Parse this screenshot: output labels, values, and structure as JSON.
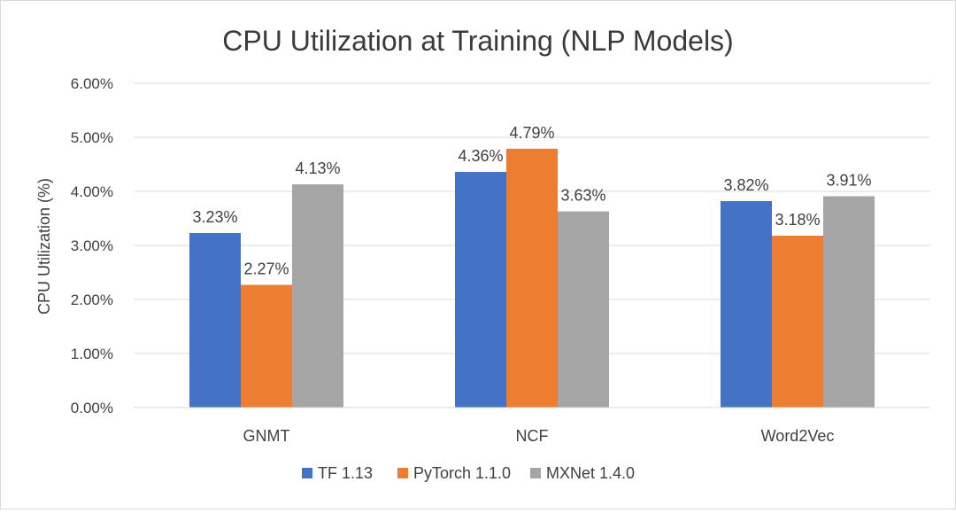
{
  "chart_data": {
    "type": "bar",
    "title": "CPU Utilization at Training (NLP Models)",
    "xlabel": "",
    "ylabel": "CPU Utilization (%)",
    "ylim": [
      0,
      6
    ],
    "yticks": [
      0,
      1,
      2,
      3,
      4,
      5,
      6
    ],
    "ytick_labels": [
      "0.00%",
      "1.00%",
      "2.00%",
      "3.00%",
      "4.00%",
      "5.00%",
      "6.00%"
    ],
    "grid": true,
    "legend_position": "bottom",
    "categories": [
      "GNMT",
      "NCF",
      "Word2Vec"
    ],
    "series": [
      {
        "name": "TF 1.13",
        "color": "#4472c4",
        "values": [
          3.23,
          4.36,
          3.82
        ],
        "labels": [
          "3.23%",
          "4.36%",
          "3.82%"
        ]
      },
      {
        "name": "PyTorch 1.1.0",
        "color": "#ed7d31",
        "values": [
          2.27,
          4.79,
          3.18
        ],
        "labels": [
          "2.27%",
          "4.79%",
          "3.18%"
        ]
      },
      {
        "name": "MXNet 1.4.0",
        "color": "#a5a5a5",
        "values": [
          4.13,
          3.63,
          3.91
        ],
        "labels": [
          "4.13%",
          "3.63%",
          "3.91%"
        ]
      }
    ]
  }
}
